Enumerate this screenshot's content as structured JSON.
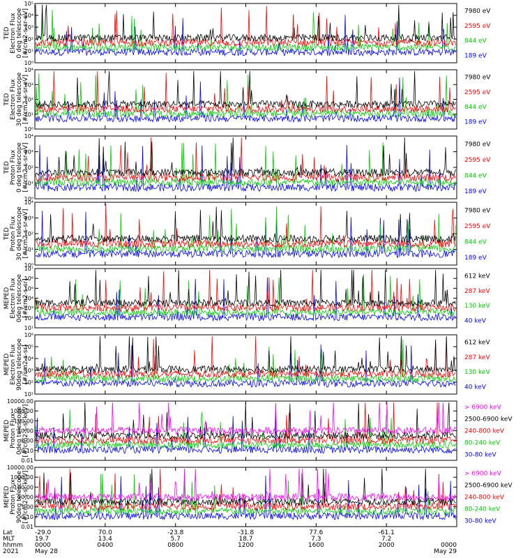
{
  "chart_data": [
    {
      "type": "line",
      "ylabel_lines": [
        "TED",
        "Electron Flux",
        "0 deg telescope",
        "[#/cm2-s-sr-eV]"
      ],
      "scale": "log",
      "yticks": [
        "10⁰",
        "10¹",
        "10²",
        "10³",
        "10⁴",
        "10⁵"
      ],
      "legend": [
        {
          "label": "7980 eV",
          "color": "#000000"
        },
        {
          "label": "2595 eV",
          "color": "#ff0000"
        },
        {
          "label": "844 eV",
          "color": "#00cc00"
        },
        {
          "label": "189 eV",
          "color": "#0000ff"
        }
      ]
    },
    {
      "type": "line",
      "ylabel_lines": [
        "TED",
        "Electron Flux",
        "30 deg telescope",
        "[#/cm2-s-sr-eV]"
      ],
      "scale": "log",
      "yticks": [
        "10⁰",
        "10¹",
        "10²",
        "10³",
        "10⁴"
      ],
      "legend": [
        {
          "label": "7980 eV",
          "color": "#000000"
        },
        {
          "label": "2595 eV",
          "color": "#ff0000"
        },
        {
          "label": "844 eV",
          "color": "#00cc00"
        },
        {
          "label": "189 eV",
          "color": "#0000ff"
        }
      ]
    },
    {
      "type": "line",
      "ylabel_lines": [
        "TED",
        "Proton Flux",
        "0 deg telescope",
        "[#/cm2-s-sr-eV]"
      ],
      "scale": "log",
      "yticks": [
        "10⁰",
        "10¹",
        "10²",
        "10³",
        "10⁴"
      ],
      "legend": [
        {
          "label": "7980 eV",
          "color": "#000000"
        },
        {
          "label": "2595 eV",
          "color": "#ff0000"
        },
        {
          "label": "844 eV",
          "color": "#00cc00"
        },
        {
          "label": "189 eV",
          "color": "#0000ff"
        }
      ]
    },
    {
      "type": "line",
      "ylabel_lines": [
        "TED",
        "Proton Flux",
        "30 deg telescope",
        "[#/cm2-s-sr-eV]"
      ],
      "scale": "log",
      "yticks": [
        "10⁰",
        "10¹",
        "10²",
        "10³",
        "10⁴"
      ],
      "legend": [
        {
          "label": "7980 eV",
          "color": "#000000"
        },
        {
          "label": "2595 eV",
          "color": "#ff0000"
        },
        {
          "label": "844 eV",
          "color": "#00cc00"
        },
        {
          "label": "189 eV",
          "color": "#0000ff"
        }
      ]
    },
    {
      "type": "line",
      "ylabel_lines": [
        "MEPED",
        "Electron Flux",
        "0deg telescope",
        "[#/cm2-s-sr]"
      ],
      "scale": "log",
      "yticks": [
        "10¹",
        "10²",
        "10³",
        "10⁴",
        "10⁵",
        "10⁶",
        "10⁷"
      ],
      "legend": [
        {
          "label": "612 keV",
          "color": "#000000"
        },
        {
          "label": "287 keV",
          "color": "#ff0000"
        },
        {
          "label": "130 keV",
          "color": "#00cc00"
        },
        {
          "label": "40 keV",
          "color": "#0000ff"
        }
      ]
    },
    {
      "type": "line",
      "ylabel_lines": [
        "MEPED",
        "Electron Flux",
        "90deg telescope",
        "[#/cm2-s-sr]"
      ],
      "scale": "log",
      "yticks": [
        "10¹",
        "10²",
        "10³",
        "10⁴",
        "10⁵",
        "10⁶"
      ],
      "legend": [
        {
          "label": "612 keV",
          "color": "#000000"
        },
        {
          "label": "287 keV",
          "color": "#ff0000"
        },
        {
          "label": "130 keV",
          "color": "#00cc00"
        },
        {
          "label": "40 keV",
          "color": "#0000ff"
        }
      ]
    },
    {
      "type": "line",
      "ylabel_lines": [
        "MEPED",
        "Proton Flux",
        "0deg telescope",
        "[#/cm2-s-sr-keV]"
      ],
      "scale": "log",
      "yticks": [
        "0.01",
        "0.10",
        "1.00",
        "10.00",
        "100.00",
        "1000.00",
        "10000.00"
      ],
      "legend": [
        {
          "label": "> 6900 keV",
          "color": "#ff00ff"
        },
        {
          "label": "2500-6900 keV",
          "color": "#000000"
        },
        {
          "label": "240-800 keV",
          "color": "#ff0000"
        },
        {
          "label": "80-240 keV",
          "color": "#00cc00"
        },
        {
          "label": "30-80 keV",
          "color": "#0000ff"
        }
      ]
    },
    {
      "type": "line",
      "ylabel_lines": [
        "MEPED",
        "Proton Flux",
        "90deg telescope",
        "[#/cm2-s-sr-keV]"
      ],
      "scale": "log",
      "yticks": [
        "0.01",
        "0.10",
        "1.00",
        "10.00",
        "100.00",
        "1000.00",
        "10000.00"
      ],
      "legend": [
        {
          "label": "> 6900 keV",
          "color": "#ff00ff"
        },
        {
          "label": "2500-6900 keV",
          "color": "#000000"
        },
        {
          "label": "240-800 keV",
          "color": "#ff0000"
        },
        {
          "label": "80-240 keV",
          "color": "#00cc00"
        },
        {
          "label": "30-80 keV",
          "color": "#0000ff"
        }
      ]
    }
  ],
  "x_axis": {
    "row_labels": [
      "Lat",
      "MLT",
      "hhmm",
      "2021"
    ],
    "ticks": [
      {
        "lat": "-29.0",
        "mlt": "19.7",
        "hhmm": "0000",
        "date": "May 28"
      },
      {
        "lat": "70.0",
        "mlt": "13.4",
        "hhmm": "0400",
        "date": ""
      },
      {
        "lat": "-23.8",
        "mlt": "5.7",
        "hhmm": "0800",
        "date": ""
      },
      {
        "lat": "-31.8",
        "mlt": "18.7",
        "hhmm": "1200",
        "date": ""
      },
      {
        "lat": "77.6",
        "mlt": "7.3",
        "hhmm": "1600",
        "date": ""
      },
      {
        "lat": "-61.1",
        "mlt": "7.2",
        "hhmm": "2000",
        "date": ""
      },
      {
        "lat": "",
        "mlt": "",
        "hhmm": "0000",
        "date": "May 29"
      }
    ]
  }
}
